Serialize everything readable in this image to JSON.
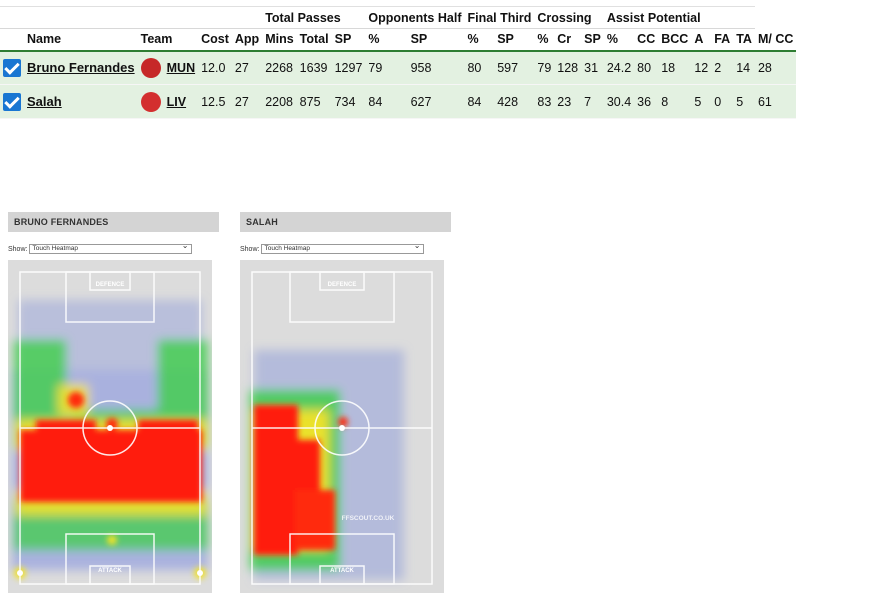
{
  "table": {
    "groups": [
      {
        "label": "",
        "span": 5
      },
      {
        "label": "Total Passes",
        "span": 3
      },
      {
        "label": "Opponents Half",
        "span": 2
      },
      {
        "label": "Final Third",
        "span": 2
      },
      {
        "label": "Crossing",
        "span": 3
      },
      {
        "label": "Assist Potential",
        "span": 6
      }
    ],
    "columns": [
      "",
      "Name",
      "Team",
      "Cost",
      "App",
      "Mins",
      "Total",
      "SP",
      "%",
      "SP",
      "%",
      "SP",
      "%",
      "Cr",
      "SP",
      "%",
      "CC",
      "BCC",
      "A",
      "FA",
      "TA",
      "M/ CC"
    ],
    "players": [
      {
        "name": "Bruno Fernandes",
        "team": "MUN",
        "badge_color": "#c62828",
        "values": [
          "12.0",
          "27",
          "2268",
          "1639",
          "1297",
          "79",
          "958",
          "80",
          "597",
          "79",
          "128",
          "31",
          "24.2",
          "80",
          "18",
          "12",
          "2",
          "14",
          "28"
        ]
      },
      {
        "name": "Salah",
        "team": "LIV",
        "badge_color": "#d32f2f",
        "values": [
          "12.5",
          "27",
          "2208",
          "875",
          "734",
          "84",
          "627",
          "84",
          "428",
          "83",
          "23",
          "7",
          "30.4",
          "36",
          "8",
          "5",
          "0",
          "5",
          "61"
        ]
      }
    ]
  },
  "heatmaps": [
    {
      "title": "BRUNO FERNANDES",
      "show_label": "Show:",
      "selected": "Touch Heatmap",
      "defence_label": "DEFENCE",
      "attack_label": "ATTACK",
      "watermark": ""
    },
    {
      "title": "SALAH",
      "show_label": "Show:",
      "selected": "Touch Heatmap",
      "defence_label": "DEFENCE",
      "attack_label": "ATTACK",
      "watermark": "FFSCOUT.CO.UK"
    }
  ],
  "colors": {
    "row_bg": "#e3f1e1",
    "header_rule": "#2e7d32",
    "checkbox": "#1976d2",
    "panel_header": "#d4d4d4",
    "pitch": "#dcdcdc"
  }
}
